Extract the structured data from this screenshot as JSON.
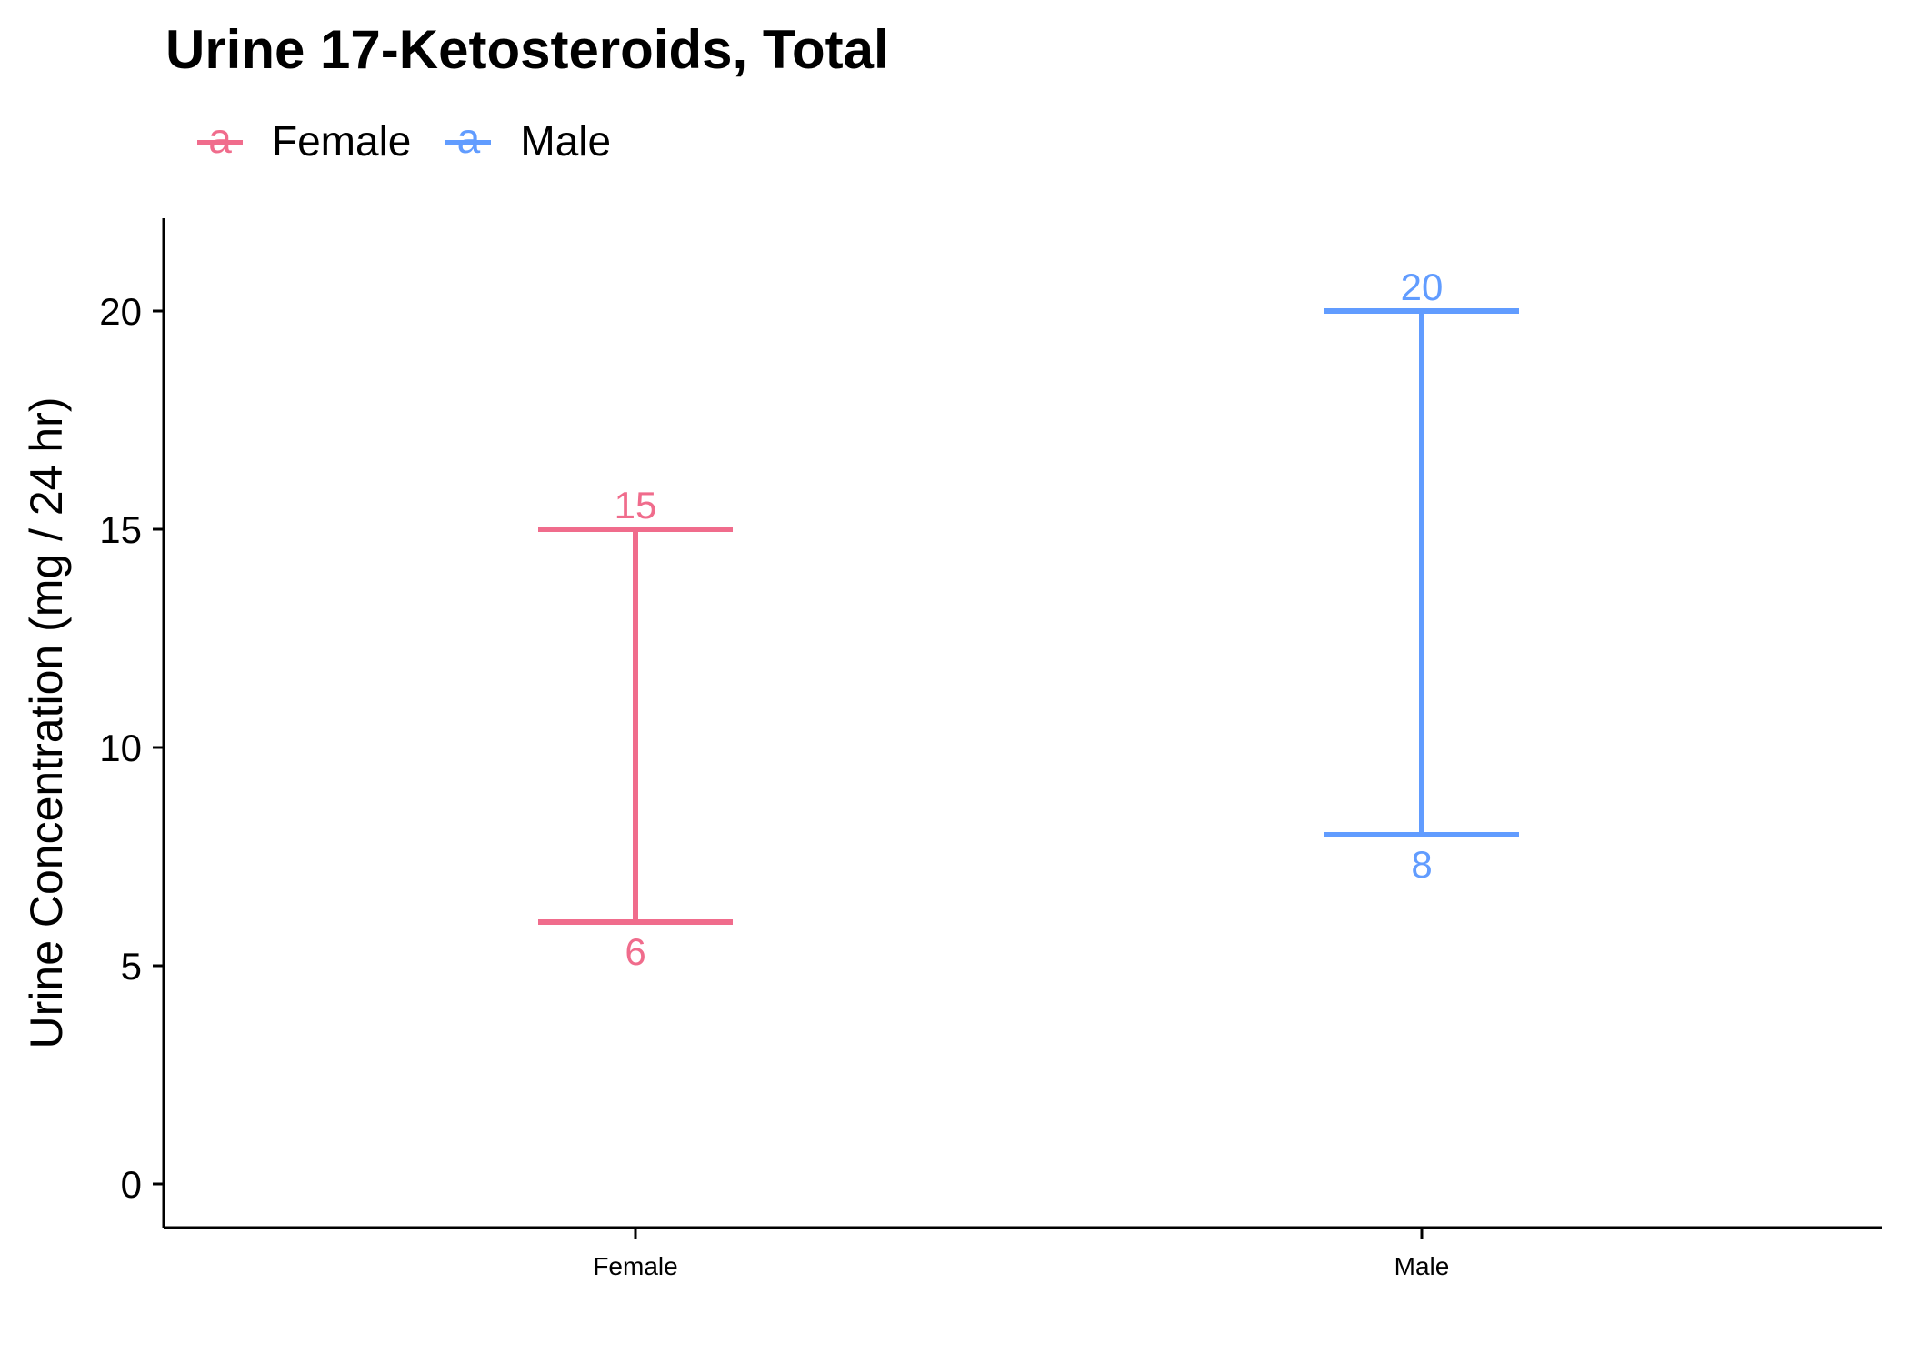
{
  "chart_data": {
    "type": "errorbar",
    "title": "Urine 17-Ketosteroids, Total",
    "ylabel": "Urine Concentration (mg / 24 hr)",
    "xlabel": "",
    "categories": [
      "Female",
      "Male"
    ],
    "ylim": [
      -1,
      22
    ],
    "yticks": [
      0,
      5,
      10,
      15,
      20
    ],
    "grid": false,
    "legend_position": "top-left",
    "legend_glyph": "a",
    "series": [
      {
        "name": "Female",
        "color": "#F8766D",
        "low": 6,
        "high": 15,
        "low_label": "6",
        "high_label": "15"
      },
      {
        "name": "Male",
        "color": "#619CFF",
        "low": 8,
        "high": 20,
        "low_label": "8",
        "high_label": "20"
      }
    ]
  }
}
